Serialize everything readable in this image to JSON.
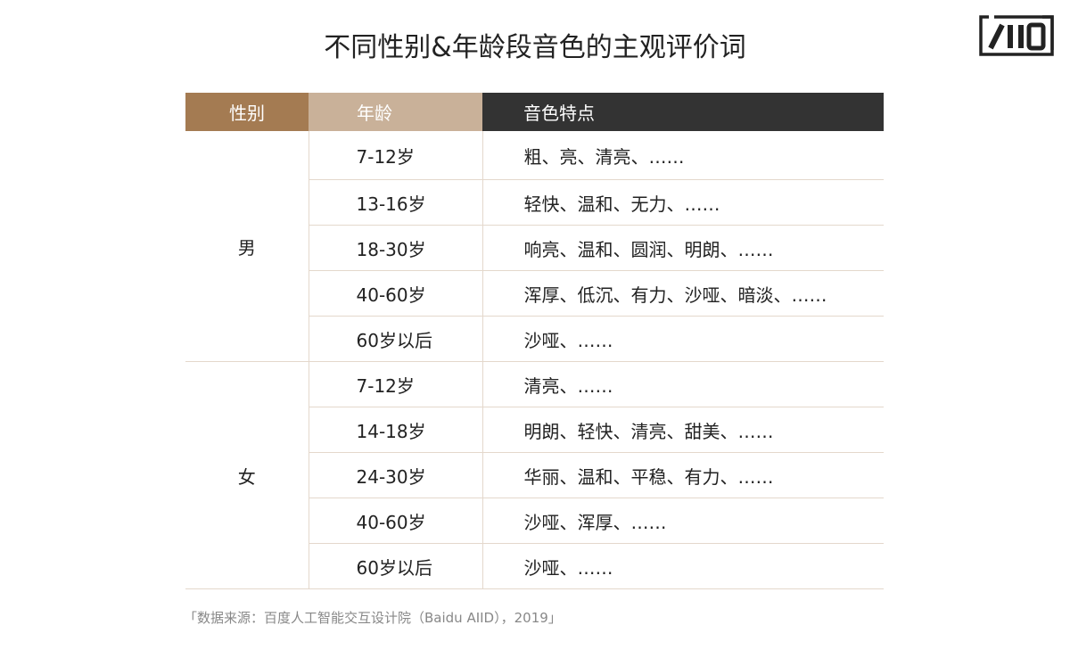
{
  "title": "不同性别&年龄段音色的主观评价词",
  "logo": {
    "text": "AIID"
  },
  "table": {
    "headers": [
      "性别",
      "年龄",
      "音色特点"
    ],
    "header_colors": [
      "#a47b52",
      "#c9b199",
      "#333333"
    ],
    "groups": [
      {
        "gender": "男",
        "rows": [
          {
            "age": "7-12岁",
            "traits": "粗、亮、清亮、……"
          },
          {
            "age": "13-16岁",
            "traits": "轻快、温和、无力、……"
          },
          {
            "age": "18-30岁",
            "traits": "响亮、温和、圆润、明朗、……"
          },
          {
            "age": "40-60岁",
            "traits": "浑厚、低沉、有力、沙哑、暗淡、……"
          },
          {
            "age": "60岁以后",
            "traits": "沙哑、……"
          }
        ]
      },
      {
        "gender": "女",
        "rows": [
          {
            "age": "7-12岁",
            "traits": "清亮、……"
          },
          {
            "age": "14-18岁",
            "traits": "明朗、轻快、清亮、甜美、……"
          },
          {
            "age": "24-30岁",
            "traits": "华丽、温和、平稳、有力、……"
          },
          {
            "age": "40-60岁",
            "traits": "沙哑、浑厚、……"
          },
          {
            "age": "60岁以后",
            "traits": "沙哑、……"
          }
        ]
      }
    ]
  },
  "source": "「数据来源：百度人工智能交互设计院（Baidu AIID），2019」"
}
